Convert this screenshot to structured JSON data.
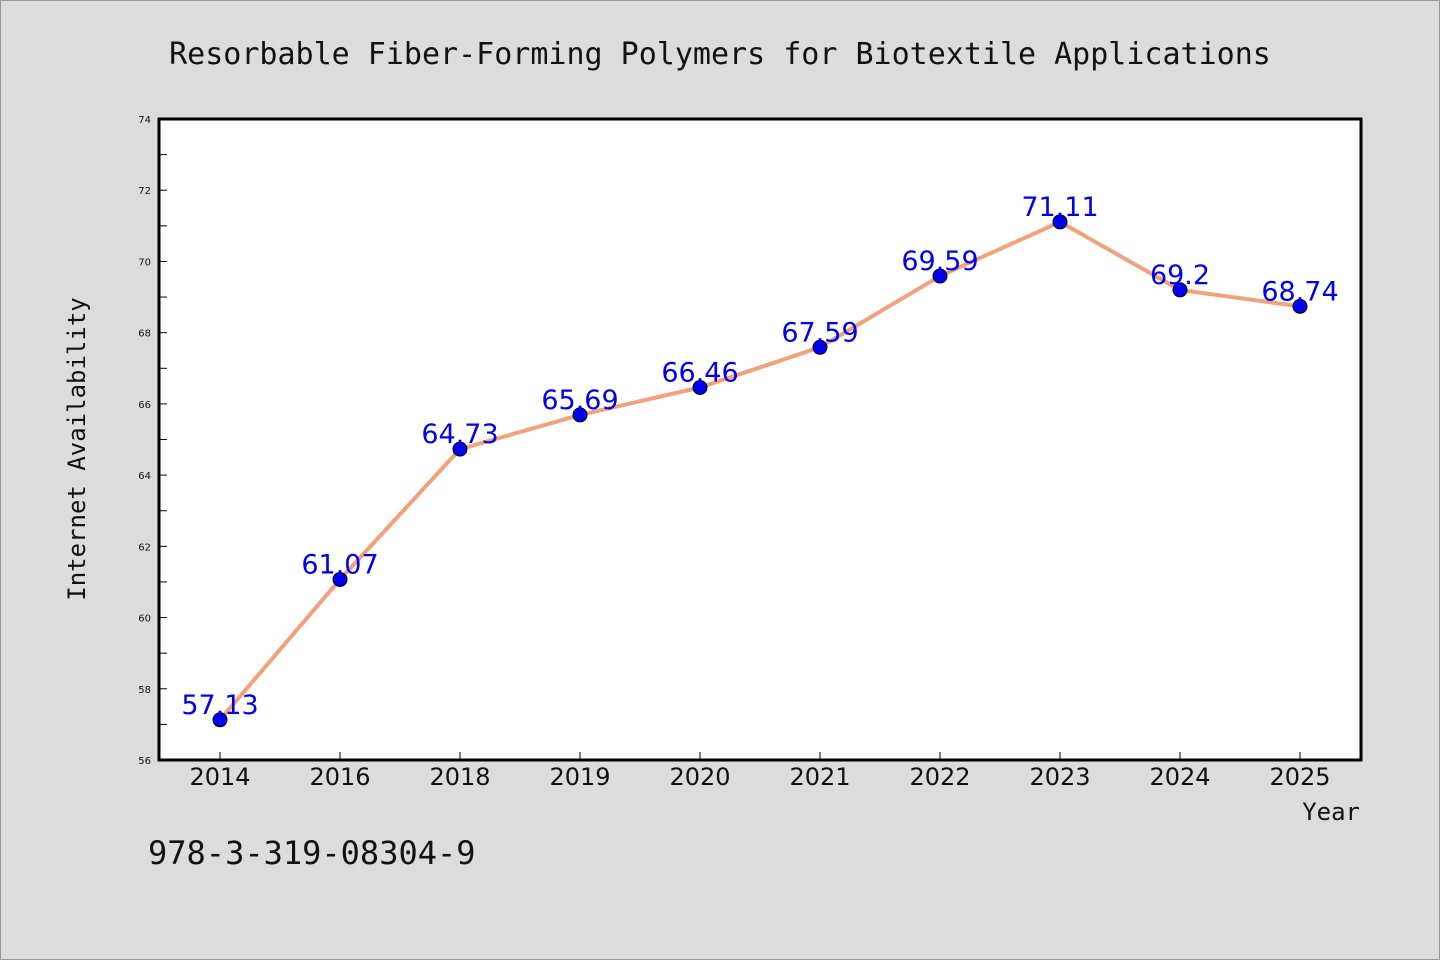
{
  "chart_data": {
    "type": "line",
    "title": "Resorbable Fiber-Forming Polymers for Biotextile Applications",
    "xlabel": "Year",
    "ylabel": "Internet Availability",
    "categories": [
      "2014",
      "2016",
      "2018",
      "2019",
      "2020",
      "2021",
      "2022",
      "2023",
      "2024",
      "2025"
    ],
    "series": [
      {
        "values": [
          57.13,
          61.07,
          64.73,
          65.69,
          66.46,
          67.59,
          69.59,
          71.11,
          69.2,
          68.74
        ],
        "data_labels": [
          "57.13",
          "61.07",
          "64.73",
          "65.69",
          "66.46",
          "67.59",
          "69.59",
          "71.11",
          "69.2",
          "68.74"
        ]
      }
    ],
    "ylim": [
      56,
      74
    ],
    "yticks": [
      56,
      58,
      60,
      62,
      64,
      66,
      68,
      70,
      72,
      74
    ],
    "ytick_labels": [
      "56",
      "58",
      "60",
      "62",
      "64",
      "66",
      "68",
      "70",
      "72",
      "74"
    ],
    "grid": false,
    "legend": "none",
    "colors": {
      "line": "#f4a07a",
      "marker": "#0000ee",
      "label": "#0000ee",
      "plot_bg": "#ffffff",
      "page_bg": "#dcdcdc"
    }
  },
  "footer": {
    "isbn": "978-3-319-08304-9"
  }
}
